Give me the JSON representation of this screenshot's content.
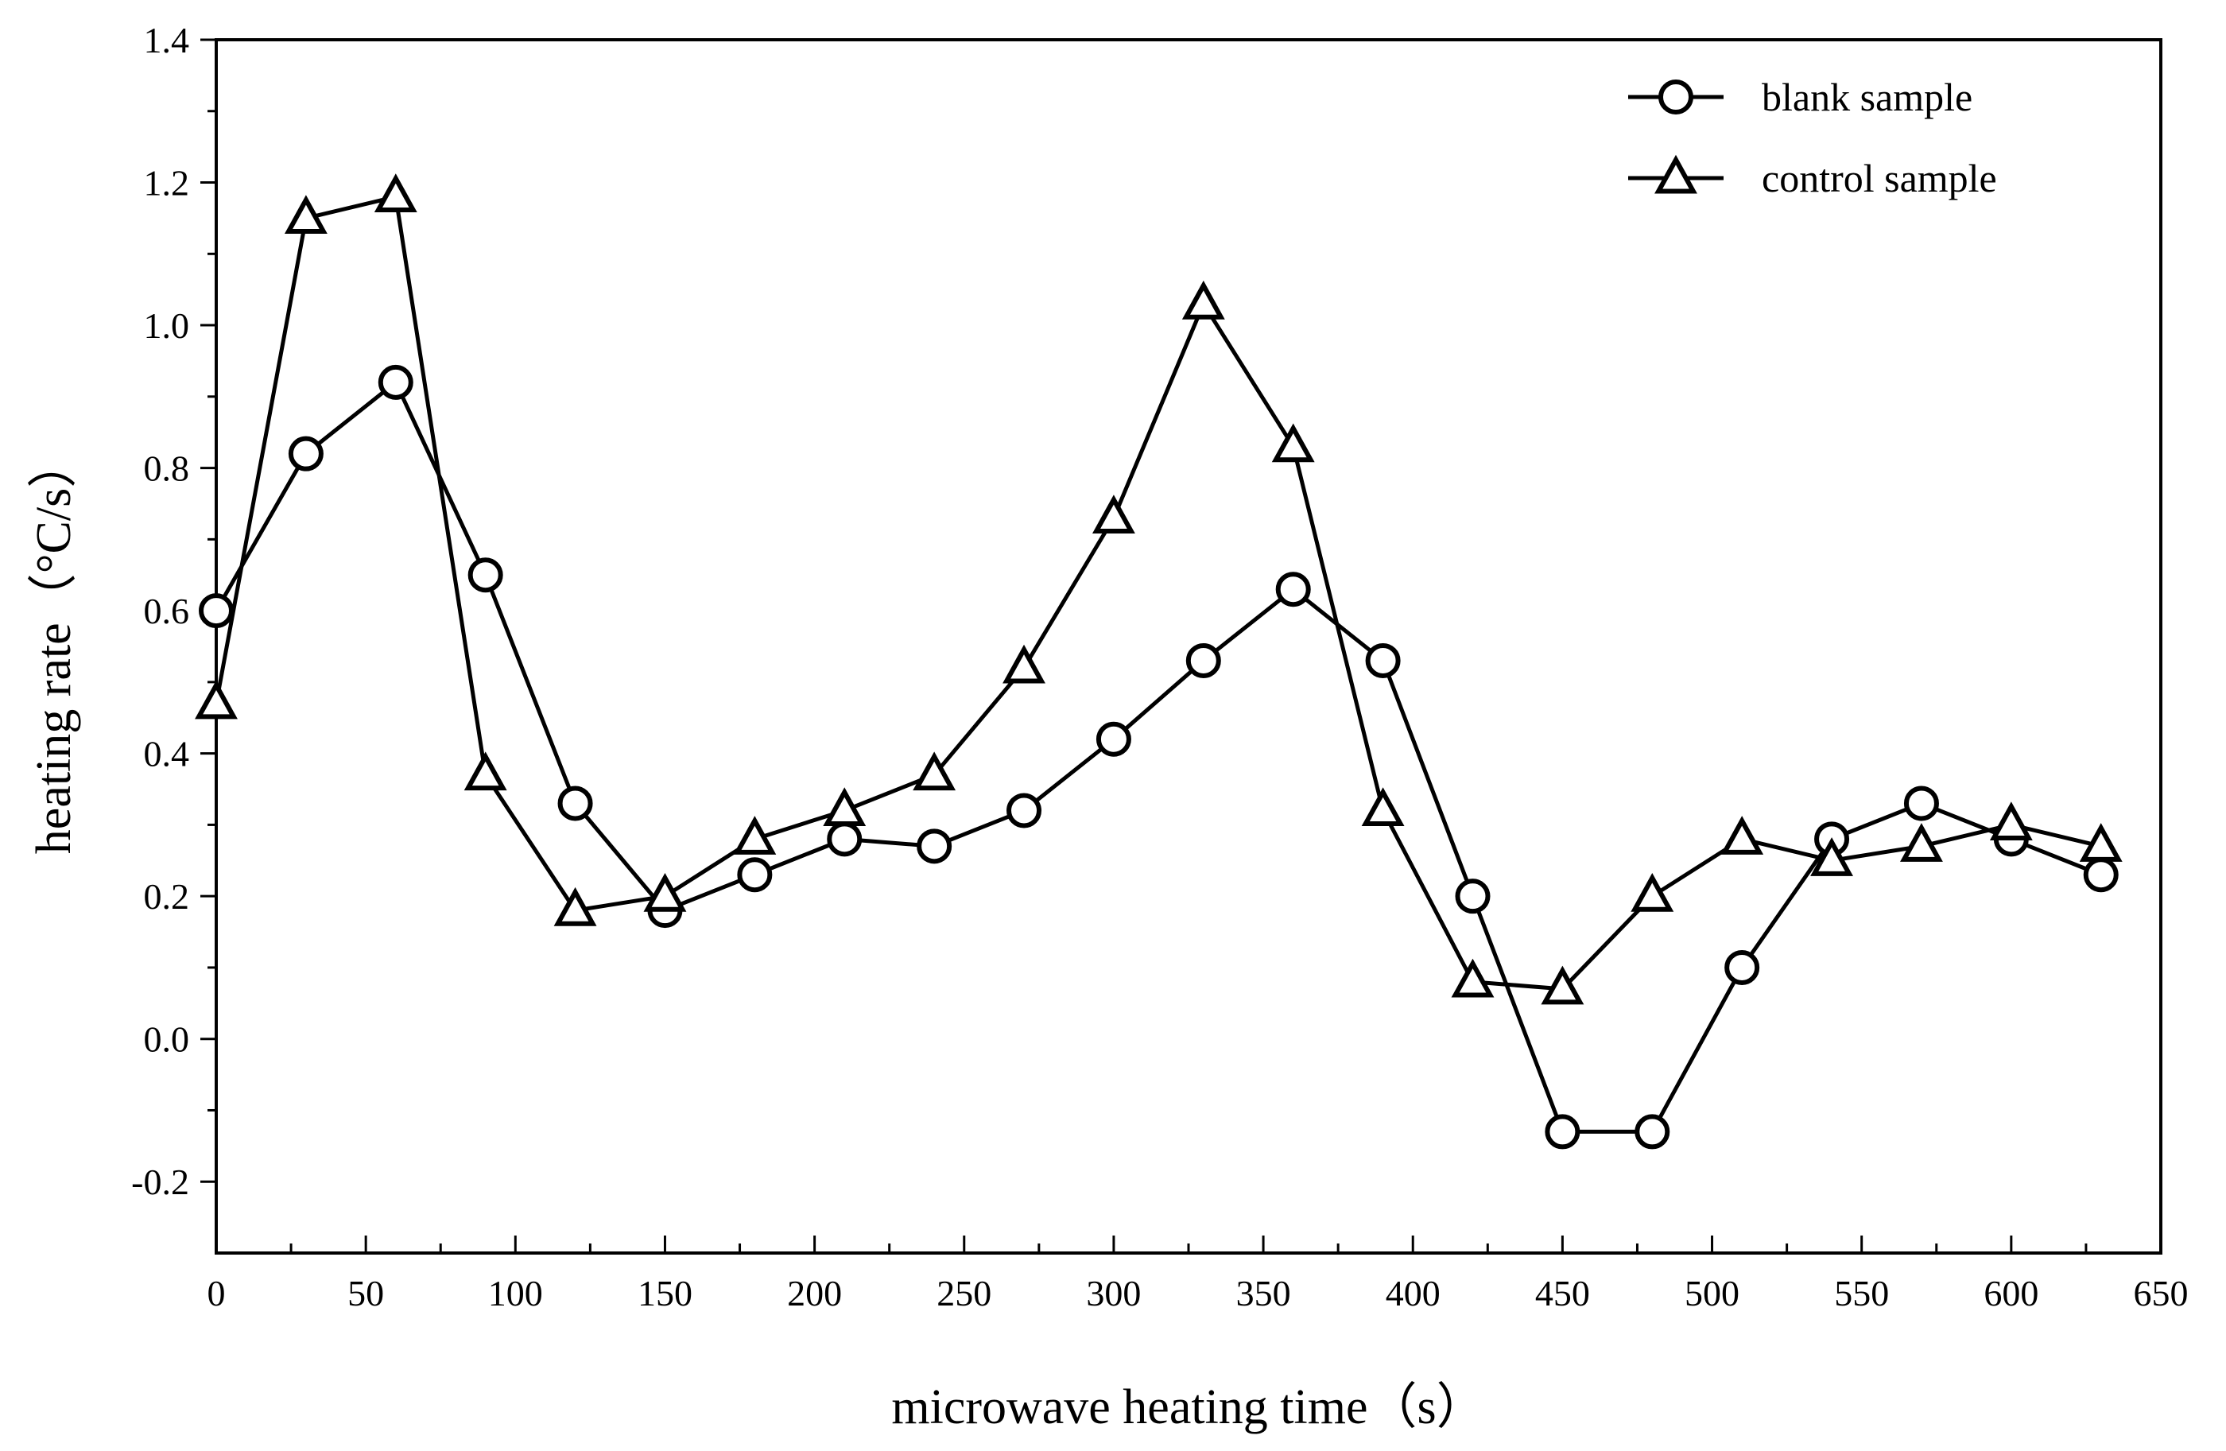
{
  "chart_data": {
    "type": "line",
    "title": "",
    "xlabel": "microwave heating time（s）",
    "ylabel": "heating rate（°C/s）",
    "xlim": [
      0,
      650
    ],
    "ylim": [
      -0.3,
      1.4
    ],
    "x_ticks": [
      0,
      50,
      100,
      150,
      200,
      250,
      300,
      350,
      400,
      450,
      500,
      550,
      600,
      650
    ],
    "x_tick_labels": [
      "0",
      "50",
      "100",
      "150",
      "200",
      "250",
      "300",
      "350",
      "400",
      "450",
      "500",
      "550",
      "600",
      "650"
    ],
    "y_ticks": [
      -0.2,
      0.0,
      0.2,
      0.4,
      0.6,
      0.8,
      1.0,
      1.2,
      1.4
    ],
    "y_tick_labels": [
      "-0.2",
      "0.0",
      "0.2",
      "0.4",
      "0.6",
      "0.8",
      "1.0",
      "1.2",
      "1.4"
    ],
    "grid": false,
    "legend_position": "top-right",
    "x": [
      0,
      30,
      60,
      90,
      120,
      150,
      180,
      210,
      240,
      270,
      300,
      330,
      360,
      390,
      420,
      450,
      480,
      510,
      540,
      570,
      600,
      630
    ],
    "series": [
      {
        "name": "blank sample",
        "marker": "circle",
        "values": [
          0.6,
          0.82,
          0.92,
          0.65,
          0.33,
          0.18,
          0.23,
          0.28,
          0.27,
          0.32,
          0.42,
          0.53,
          0.63,
          0.53,
          0.2,
          -0.13,
          -0.13,
          0.1,
          0.28,
          0.33,
          0.28,
          0.23
        ]
      },
      {
        "name": "control sample",
        "marker": "triangle",
        "values": [
          0.47,
          1.15,
          1.18,
          0.37,
          0.18,
          0.2,
          0.28,
          0.32,
          0.37,
          0.52,
          0.73,
          1.03,
          0.83,
          0.32,
          0.08,
          0.07,
          0.2,
          0.28,
          0.25,
          0.27,
          0.3,
          0.27
        ]
      }
    ],
    "colors": {
      "line": "#000000",
      "marker_fill": "#ffffff",
      "background": "#ffffff"
    }
  }
}
